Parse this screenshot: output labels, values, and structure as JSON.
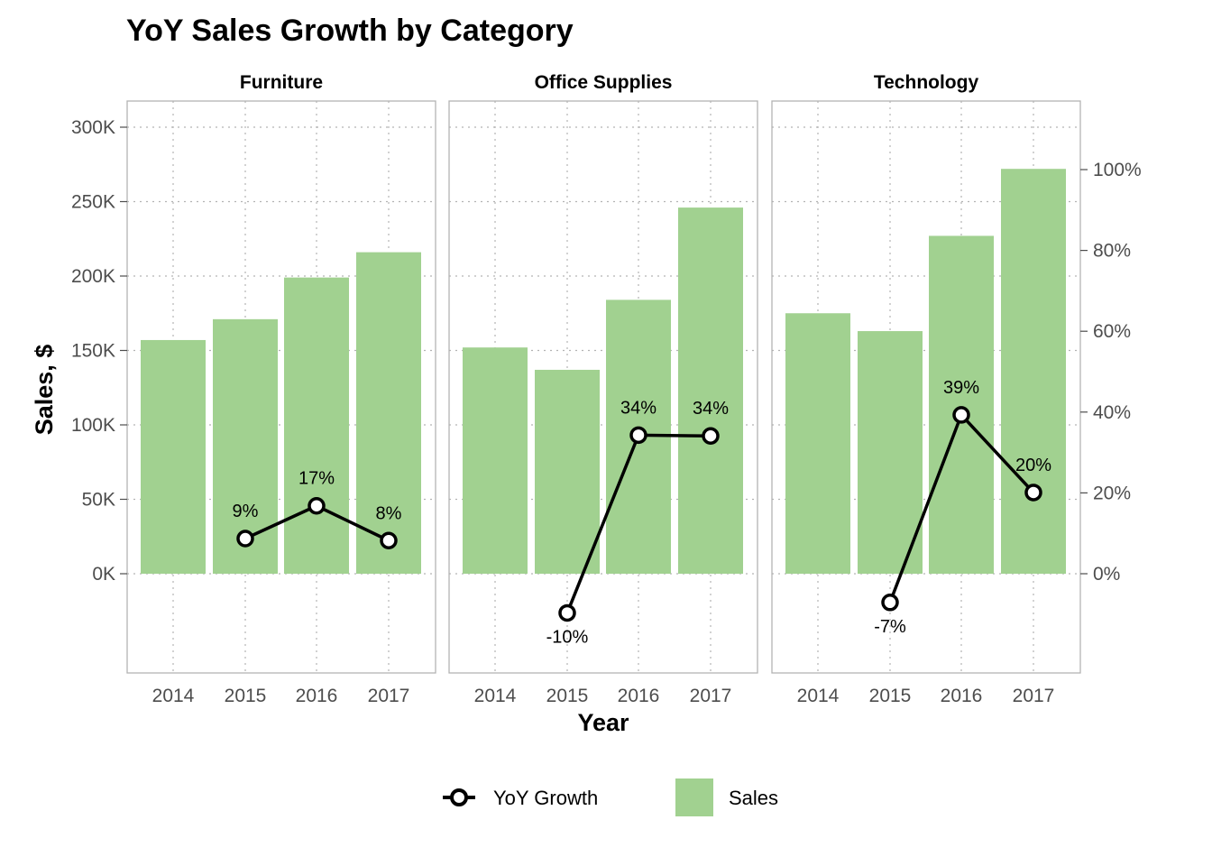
{
  "chart_data": {
    "type": "bar",
    "title": "YoY Sales Growth by Category",
    "xlabel": "Year",
    "ylabel": "Sales, $",
    "categories": [
      "2014",
      "2015",
      "2016",
      "2017"
    ],
    "y_ticks": [
      "0K",
      "50K",
      "100K",
      "150K",
      "200K",
      "250K",
      "300K"
    ],
    "ylim": [
      -66000,
      302000
    ],
    "y2_ticks": [
      "0%",
      "20%",
      "40%",
      "60%",
      "80%",
      "100%"
    ],
    "y2lim": [
      -24.5,
      110
    ],
    "grid": "dotted",
    "legend_position": "bottom",
    "legend": [
      {
        "name": "YoY Growth",
        "kind": "line-point"
      },
      {
        "name": "Sales",
        "kind": "bar"
      }
    ],
    "colors": {
      "bar": "#a1d190",
      "line": "#000000",
      "point_fill": "#ffffff",
      "grid": "#b3b3b3",
      "panel_border": "#b3b3b3"
    },
    "panels": [
      {
        "name": "Furniture",
        "sales": [
          157000,
          171000,
          199000,
          216000
        ],
        "growth": [
          null,
          8.7,
          16.8,
          8.2
        ],
        "growth_labels": [
          "",
          "9%",
          "17%",
          "8%"
        ]
      },
      {
        "name": "Office Supplies",
        "sales": [
          152000,
          137000,
          184000,
          246000
        ],
        "growth": [
          null,
          -9.7,
          34.3,
          34.1
        ],
        "growth_labels": [
          "",
          "-10%",
          "34%",
          "34%"
        ]
      },
      {
        "name": "Technology",
        "sales": [
          175000,
          163000,
          227000,
          272000
        ],
        "growth": [
          null,
          -7.1,
          39.3,
          20.1
        ],
        "growth_labels": [
          "",
          "-7%",
          "39%",
          "20%"
        ]
      }
    ]
  }
}
